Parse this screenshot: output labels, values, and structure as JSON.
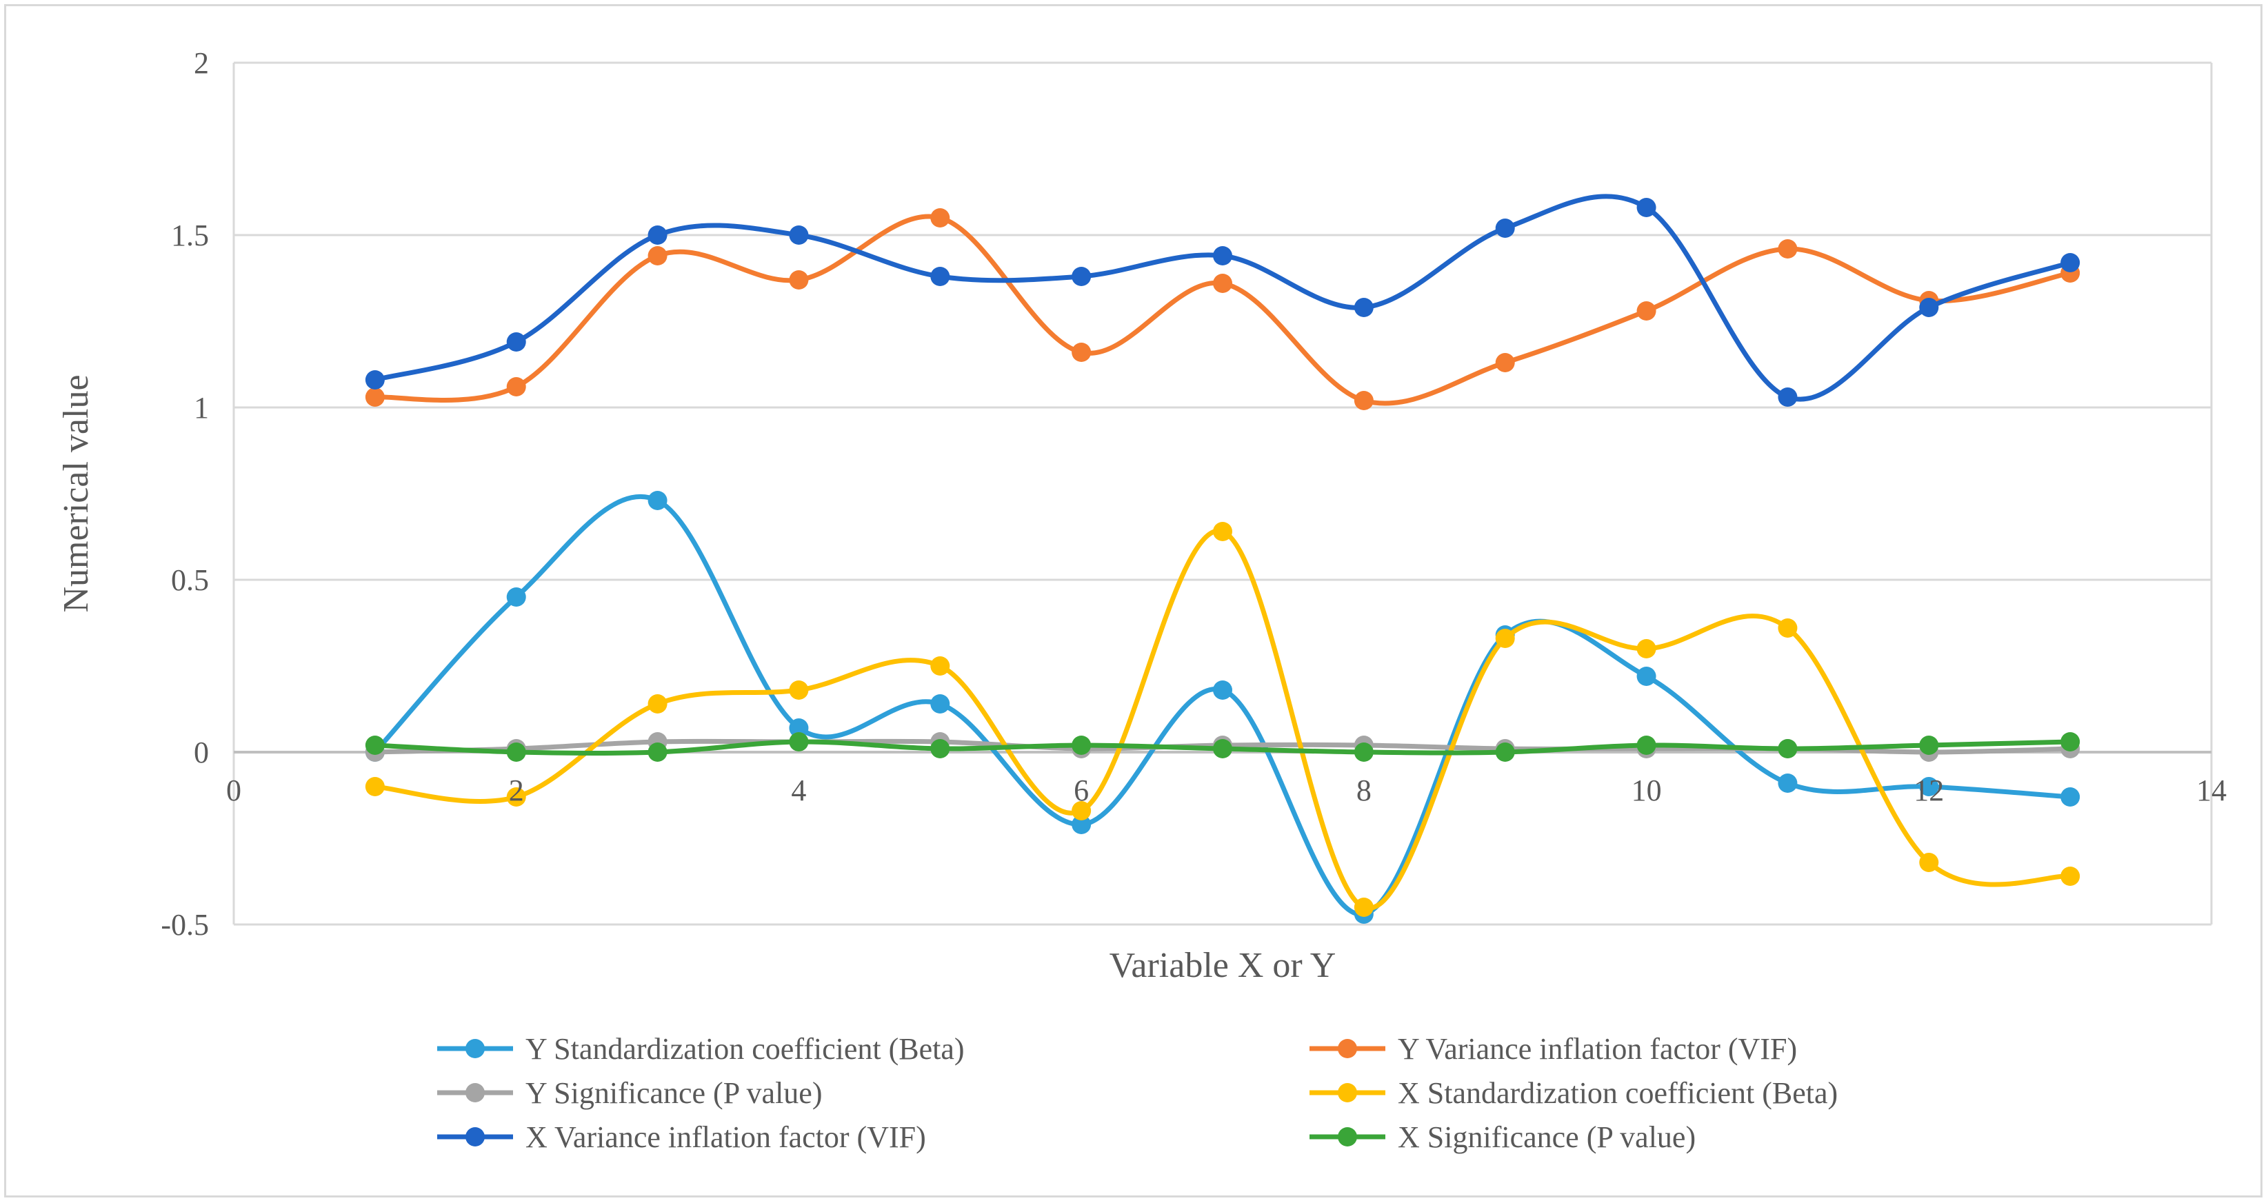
{
  "chart_data": {
    "type": "line",
    "title": "",
    "xlabel": "Variable X or Y",
    "ylabel": "Numerical value",
    "xlim": [
      0,
      14
    ],
    "ylim": [
      -0.5,
      2
    ],
    "xticks": [
      0,
      2,
      4,
      6,
      8,
      10,
      12,
      14
    ],
    "yticks": [
      -0.5,
      0,
      0.5,
      1,
      1.5,
      2
    ],
    "xtick_labels": [
      "0",
      "2",
      "4",
      "6",
      "8",
      "10",
      "12",
      "14"
    ],
    "ytick_labels": [
      "-0.5",
      "0",
      "0.5",
      "1",
      "1.5",
      "2"
    ],
    "grid": "horizontal",
    "legend_position": "bottom",
    "x": [
      1,
      2,
      3,
      4,
      5,
      6,
      7,
      8,
      9,
      10,
      11,
      12,
      13
    ],
    "series": [
      {
        "name": "Y Standardization coefficient (Beta)",
        "color": "#2e9fd9",
        "values": [
          0.0,
          0.45,
          0.73,
          0.07,
          0.14,
          -0.21,
          0.18,
          -0.47,
          0.34,
          0.22,
          -0.09,
          -0.1,
          -0.13
        ]
      },
      {
        "name": "Y Variance inflation factor (VIF)",
        "color": "#f47c30",
        "values": [
          1.03,
          1.06,
          1.44,
          1.37,
          1.55,
          1.16,
          1.36,
          1.02,
          1.13,
          1.28,
          1.46,
          1.31,
          1.39
        ]
      },
      {
        "name": "Y Significance (P value)",
        "color": "#a5a5a5",
        "values": [
          0.0,
          0.01,
          0.03,
          0.03,
          0.03,
          0.01,
          0.02,
          0.02,
          0.01,
          0.01,
          0.01,
          0.0,
          0.01
        ]
      },
      {
        "name": "X Standardization coefficient (Beta)",
        "color": "#ffc000",
        "values": [
          -0.1,
          -0.13,
          0.14,
          0.18,
          0.25,
          -0.17,
          0.64,
          -0.45,
          0.33,
          0.3,
          0.36,
          -0.32,
          -0.36
        ]
      },
      {
        "name": "X Variance inflation factor (VIF)",
        "color": "#1f64c8",
        "values": [
          1.08,
          1.19,
          1.5,
          1.5,
          1.38,
          1.38,
          1.44,
          1.29,
          1.52,
          1.58,
          1.03,
          1.29,
          1.42
        ]
      },
      {
        "name": "X Significance (P value)",
        "color": "#3aa538",
        "values": [
          0.02,
          0.0,
          0.0,
          0.03,
          0.01,
          0.02,
          0.01,
          0.0,
          0.0,
          0.02,
          0.01,
          0.02,
          0.03
        ]
      }
    ],
    "colors": {
      "grid": "#d9d9d9",
      "axis": "#bfbfbf",
      "text": "#595959"
    }
  }
}
